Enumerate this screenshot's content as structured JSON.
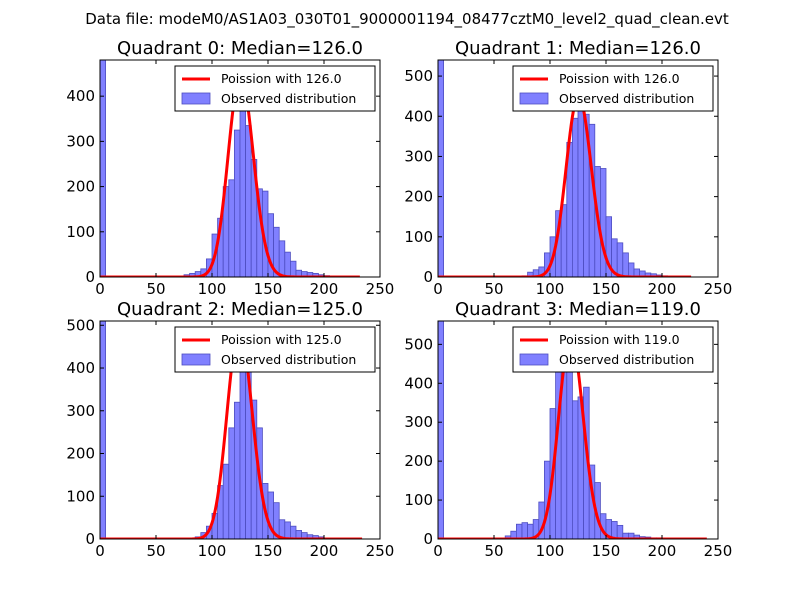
{
  "figure": {
    "suptitle": "Data file: modeM0/AS1A03_030T01_9000001194_08477cztM0_level2_quad_clean.evt",
    "colors": {
      "bar_fill": "#8080ff",
      "bar_edge": "#4d4dc0",
      "poisson": "#ff0000",
      "axes": "#000000"
    }
  },
  "chart_data": [
    {
      "type": "bar",
      "title": "Quadrant 0: Median=126.0",
      "median": 126.0,
      "xlim": [
        0,
        250
      ],
      "ylim": [
        0,
        480
      ],
      "xticks": [
        0,
        50,
        100,
        150,
        200,
        250
      ],
      "yticks": [
        0,
        100,
        200,
        300,
        400
      ],
      "bin_width": 5,
      "bins": [
        {
          "x": 0,
          "y": 480
        },
        {
          "x": 70,
          "y": 2
        },
        {
          "x": 75,
          "y": 5
        },
        {
          "x": 80,
          "y": 8
        },
        {
          "x": 85,
          "y": 12
        },
        {
          "x": 90,
          "y": 18
        },
        {
          "x": 95,
          "y": 40
        },
        {
          "x": 100,
          "y": 95
        },
        {
          "x": 105,
          "y": 130
        },
        {
          "x": 110,
          "y": 200
        },
        {
          "x": 115,
          "y": 215
        },
        {
          "x": 120,
          "y": 325
        },
        {
          "x": 125,
          "y": 445
        },
        {
          "x": 130,
          "y": 335
        },
        {
          "x": 135,
          "y": 260
        },
        {
          "x": 140,
          "y": 195
        },
        {
          "x": 145,
          "y": 190
        },
        {
          "x": 150,
          "y": 140
        },
        {
          "x": 155,
          "y": 110
        },
        {
          "x": 160,
          "y": 80
        },
        {
          "x": 165,
          "y": 55
        },
        {
          "x": 170,
          "y": 35
        },
        {
          "x": 175,
          "y": 15
        },
        {
          "x": 180,
          "y": 12
        },
        {
          "x": 185,
          "y": 10
        },
        {
          "x": 190,
          "y": 8
        },
        {
          "x": 195,
          "y": 5
        },
        {
          "x": 200,
          "y": 3
        },
        {
          "x": 205,
          "y": 2
        },
        {
          "x": 210,
          "y": 1
        },
        {
          "x": 215,
          "y": 1
        }
      ],
      "curve_xmax": 232,
      "legend": [
        "Poission with 126.0",
        "Observed distribution"
      ]
    },
    {
      "type": "bar",
      "title": "Quadrant 1: Median=126.0",
      "median": 126.0,
      "xlim": [
        0,
        250
      ],
      "ylim": [
        0,
        540
      ],
      "xticks": [
        0,
        50,
        100,
        150,
        200,
        250
      ],
      "yticks": [
        0,
        100,
        200,
        300,
        400,
        500
      ],
      "bin_width": 5,
      "bins": [
        {
          "x": 0,
          "y": 540
        },
        {
          "x": 75,
          "y": 3
        },
        {
          "x": 80,
          "y": 12
        },
        {
          "x": 85,
          "y": 18
        },
        {
          "x": 90,
          "y": 25
        },
        {
          "x": 95,
          "y": 60
        },
        {
          "x": 100,
          "y": 100
        },
        {
          "x": 105,
          "y": 165
        },
        {
          "x": 110,
          "y": 180
        },
        {
          "x": 115,
          "y": 335
        },
        {
          "x": 120,
          "y": 395
        },
        {
          "x": 125,
          "y": 450
        },
        {
          "x": 130,
          "y": 405
        },
        {
          "x": 135,
          "y": 380
        },
        {
          "x": 140,
          "y": 275
        },
        {
          "x": 145,
          "y": 270
        },
        {
          "x": 150,
          "y": 150
        },
        {
          "x": 155,
          "y": 95
        },
        {
          "x": 160,
          "y": 85
        },
        {
          "x": 165,
          "y": 60
        },
        {
          "x": 170,
          "y": 35
        },
        {
          "x": 175,
          "y": 20
        },
        {
          "x": 180,
          "y": 15
        },
        {
          "x": 185,
          "y": 10
        },
        {
          "x": 190,
          "y": 8
        },
        {
          "x": 195,
          "y": 5
        },
        {
          "x": 200,
          "y": 3
        },
        {
          "x": 205,
          "y": 2
        }
      ],
      "curve_xmax": 226,
      "legend": [
        "Poission with 126.0",
        "Observed distribution"
      ]
    },
    {
      "type": "bar",
      "title": "Quadrant 2: Median=125.0",
      "median": 125.0,
      "xlim": [
        0,
        250
      ],
      "ylim": [
        0,
        510
      ],
      "xticks": [
        0,
        50,
        100,
        150,
        200,
        250
      ],
      "yticks": [
        0,
        100,
        200,
        300,
        400,
        500
      ],
      "bin_width": 5,
      "bins": [
        {
          "x": 0,
          "y": 510
        },
        {
          "x": 85,
          "y": 5
        },
        {
          "x": 90,
          "y": 15
        },
        {
          "x": 95,
          "y": 30
        },
        {
          "x": 100,
          "y": 60
        },
        {
          "x": 105,
          "y": 125
        },
        {
          "x": 110,
          "y": 175
        },
        {
          "x": 115,
          "y": 260
        },
        {
          "x": 120,
          "y": 320
        },
        {
          "x": 125,
          "y": 490
        },
        {
          "x": 130,
          "y": 395
        },
        {
          "x": 135,
          "y": 325
        },
        {
          "x": 140,
          "y": 260
        },
        {
          "x": 145,
          "y": 130
        },
        {
          "x": 150,
          "y": 110
        },
        {
          "x": 155,
          "y": 85
        },
        {
          "x": 160,
          "y": 45
        },
        {
          "x": 165,
          "y": 40
        },
        {
          "x": 170,
          "y": 30
        },
        {
          "x": 175,
          "y": 20
        },
        {
          "x": 180,
          "y": 15
        },
        {
          "x": 185,
          "y": 10
        },
        {
          "x": 190,
          "y": 8
        },
        {
          "x": 195,
          "y": 5
        },
        {
          "x": 200,
          "y": 2
        }
      ],
      "curve_xmax": 234,
      "legend": [
        "Poission with 125.0",
        "Observed distribution"
      ]
    },
    {
      "type": "bar",
      "title": "Quadrant 3: Median=119.0",
      "median": 119.0,
      "xlim": [
        0,
        250
      ],
      "ylim": [
        0,
        560
      ],
      "xticks": [
        0,
        50,
        100,
        150,
        200,
        250
      ],
      "yticks": [
        0,
        100,
        200,
        300,
        400,
        500
      ],
      "bin_width": 5,
      "bins": [
        {
          "x": 0,
          "y": 560
        },
        {
          "x": 60,
          "y": 8
        },
        {
          "x": 65,
          "y": 20
        },
        {
          "x": 70,
          "y": 38
        },
        {
          "x": 75,
          "y": 42
        },
        {
          "x": 80,
          "y": 38
        },
        {
          "x": 85,
          "y": 50
        },
        {
          "x": 90,
          "y": 95
        },
        {
          "x": 95,
          "y": 200
        },
        {
          "x": 100,
          "y": 335
        },
        {
          "x": 105,
          "y": 475
        },
        {
          "x": 110,
          "y": 520
        },
        {
          "x": 115,
          "y": 490
        },
        {
          "x": 120,
          "y": 355
        },
        {
          "x": 125,
          "y": 365
        },
        {
          "x": 130,
          "y": 390
        },
        {
          "x": 135,
          "y": 190
        },
        {
          "x": 140,
          "y": 145
        },
        {
          "x": 145,
          "y": 65
        },
        {
          "x": 150,
          "y": 50
        },
        {
          "x": 155,
          "y": 45
        },
        {
          "x": 160,
          "y": 35
        },
        {
          "x": 165,
          "y": 15
        },
        {
          "x": 170,
          "y": 15
        },
        {
          "x": 175,
          "y": 10
        },
        {
          "x": 180,
          "y": 6
        },
        {
          "x": 185,
          "y": 5
        },
        {
          "x": 190,
          "y": 3
        },
        {
          "x": 195,
          "y": 3
        },
        {
          "x": 200,
          "y": 2
        }
      ],
      "curve_xmax": 240,
      "legend": [
        "Poission with 119.0",
        "Observed distribution"
      ]
    }
  ]
}
